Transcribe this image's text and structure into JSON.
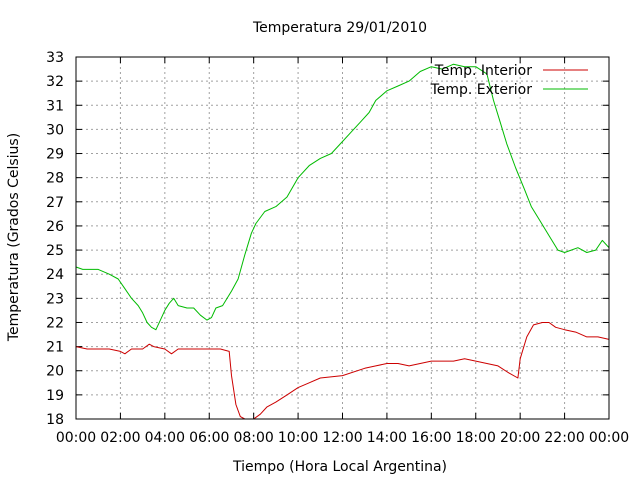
{
  "chart_data": {
    "type": "line",
    "title": "Temperatura 29/01/2010",
    "xlabel": "Tiempo (Hora Local Argentina)",
    "ylabel": "Temperatura (Grados Celsius)",
    "xlim": [
      0,
      24
    ],
    "ylim": [
      18,
      33
    ],
    "x_ticks": [
      "00:00",
      "02:00",
      "04:00",
      "06:00",
      "08:00",
      "10:00",
      "12:00",
      "14:00",
      "16:00",
      "18:00",
      "20:00",
      "22:00",
      "00:00"
    ],
    "y_ticks": [
      "18",
      "19",
      "20",
      "21",
      "22",
      "23",
      "24",
      "25",
      "26",
      "27",
      "28",
      "29",
      "30",
      "31",
      "32",
      "33"
    ],
    "grid": true,
    "legend_position": "top-right",
    "series": [
      {
        "name": "Temp. Interior",
        "color": "#cc0000",
        "points": [
          [
            0.0,
            21.0
          ],
          [
            0.5,
            20.9
          ],
          [
            1.0,
            20.9
          ],
          [
            1.5,
            20.9
          ],
          [
            2.0,
            20.8
          ],
          [
            2.2,
            20.7
          ],
          [
            2.5,
            20.9
          ],
          [
            3.0,
            20.9
          ],
          [
            3.3,
            21.1
          ],
          [
            3.5,
            21.0
          ],
          [
            4.0,
            20.9
          ],
          [
            4.3,
            20.7
          ],
          [
            4.6,
            20.9
          ],
          [
            5.0,
            20.9
          ],
          [
            5.5,
            20.9
          ],
          [
            6.0,
            20.9
          ],
          [
            6.5,
            20.9
          ],
          [
            6.9,
            20.8
          ],
          [
            7.0,
            19.8
          ],
          [
            7.2,
            18.6
          ],
          [
            7.4,
            18.1
          ],
          [
            7.6,
            18.0
          ],
          [
            8.0,
            18.0
          ],
          [
            8.3,
            18.2
          ],
          [
            8.6,
            18.5
          ],
          [
            9.0,
            18.7
          ],
          [
            9.5,
            19.0
          ],
          [
            10.0,
            19.3
          ],
          [
            10.5,
            19.5
          ],
          [
            11.0,
            19.7
          ],
          [
            12.0,
            19.8
          ],
          [
            13.0,
            20.1
          ],
          [
            13.5,
            20.2
          ],
          [
            14.0,
            20.3
          ],
          [
            14.5,
            20.3
          ],
          [
            15.0,
            20.2
          ],
          [
            15.5,
            20.3
          ],
          [
            16.0,
            20.4
          ],
          [
            17.0,
            20.4
          ],
          [
            17.5,
            20.5
          ],
          [
            18.0,
            20.4
          ],
          [
            18.5,
            20.3
          ],
          [
            19.0,
            20.2
          ],
          [
            19.5,
            19.9
          ],
          [
            19.9,
            19.7
          ],
          [
            20.0,
            20.5
          ],
          [
            20.3,
            21.4
          ],
          [
            20.6,
            21.9
          ],
          [
            21.0,
            22.0
          ],
          [
            21.3,
            22.0
          ],
          [
            21.6,
            21.8
          ],
          [
            22.0,
            21.7
          ],
          [
            22.5,
            21.6
          ],
          [
            23.0,
            21.4
          ],
          [
            23.5,
            21.4
          ],
          [
            24.0,
            21.3
          ]
        ]
      },
      {
        "name": "Temp. Exterior",
        "color": "#00bb00",
        "points": [
          [
            0.0,
            24.3
          ],
          [
            0.3,
            24.2
          ],
          [
            0.6,
            24.2
          ],
          [
            1.0,
            24.2
          ],
          [
            1.5,
            24.0
          ],
          [
            1.9,
            23.8
          ],
          [
            2.2,
            23.4
          ],
          [
            2.5,
            23.0
          ],
          [
            2.8,
            22.7
          ],
          [
            3.0,
            22.4
          ],
          [
            3.2,
            22.0
          ],
          [
            3.4,
            21.8
          ],
          [
            3.6,
            21.7
          ],
          [
            3.8,
            22.1
          ],
          [
            4.0,
            22.5
          ],
          [
            4.2,
            22.8
          ],
          [
            4.4,
            23.0
          ],
          [
            4.6,
            22.7
          ],
          [
            5.0,
            22.6
          ],
          [
            5.3,
            22.6
          ],
          [
            5.6,
            22.3
          ],
          [
            5.9,
            22.1
          ],
          [
            6.1,
            22.2
          ],
          [
            6.3,
            22.6
          ],
          [
            6.6,
            22.7
          ],
          [
            7.0,
            23.3
          ],
          [
            7.3,
            23.8
          ],
          [
            7.6,
            24.8
          ],
          [
            7.9,
            25.7
          ],
          [
            8.1,
            26.1
          ],
          [
            8.5,
            26.6
          ],
          [
            9.0,
            26.8
          ],
          [
            9.5,
            27.2
          ],
          [
            10.0,
            28.0
          ],
          [
            10.5,
            28.5
          ],
          [
            11.0,
            28.8
          ],
          [
            11.5,
            29.0
          ],
          [
            12.0,
            29.5
          ],
          [
            12.4,
            29.9
          ],
          [
            12.8,
            30.3
          ],
          [
            13.2,
            30.7
          ],
          [
            13.5,
            31.2
          ],
          [
            14.0,
            31.6
          ],
          [
            14.5,
            31.8
          ],
          [
            15.0,
            32.0
          ],
          [
            15.5,
            32.4
          ],
          [
            16.0,
            32.6
          ],
          [
            16.5,
            32.5
          ],
          [
            17.0,
            32.7
          ],
          [
            17.5,
            32.6
          ],
          [
            18.0,
            32.6
          ],
          [
            18.5,
            32.3
          ],
          [
            18.8,
            31.2
          ],
          [
            19.1,
            30.3
          ],
          [
            19.4,
            29.4
          ],
          [
            19.8,
            28.4
          ],
          [
            20.2,
            27.5
          ],
          [
            20.5,
            26.8
          ],
          [
            20.9,
            26.2
          ],
          [
            21.3,
            25.6
          ],
          [
            21.7,
            25.0
          ],
          [
            22.0,
            24.9
          ],
          [
            22.3,
            25.0
          ],
          [
            22.6,
            25.1
          ],
          [
            23.0,
            24.9
          ],
          [
            23.4,
            25.0
          ],
          [
            23.7,
            25.4
          ],
          [
            24.0,
            25.1
          ]
        ]
      }
    ]
  }
}
